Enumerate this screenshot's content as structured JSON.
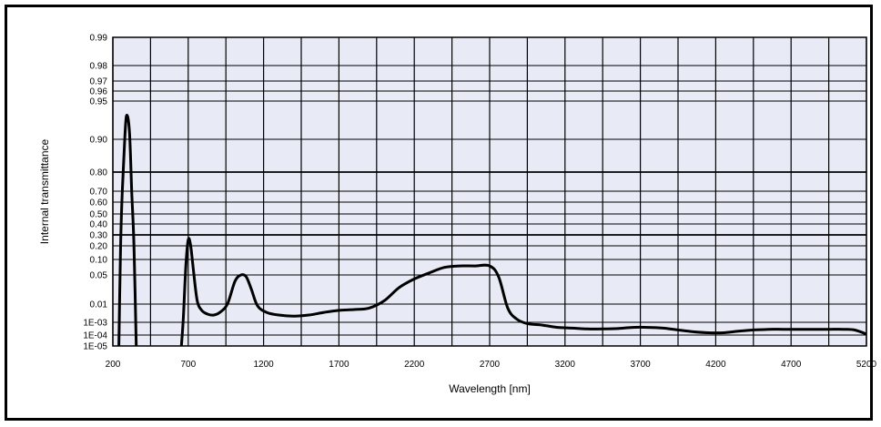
{
  "chart_data": {
    "type": "line",
    "xlabel": "Wavelength [nm]",
    "ylabel": "Internal transmittance",
    "xlim": [
      200,
      5200
    ],
    "x_ticks": [
      200,
      700,
      1200,
      1700,
      2200,
      2700,
      3200,
      3700,
      4200,
      4700,
      5200
    ],
    "x_tick_labels": [
      "200",
      "700",
      "1200",
      "1700",
      "2200",
      "2700",
      "3200",
      "3700",
      "4200",
      "4700",
      "5200"
    ],
    "y_ticks": [
      {
        "label": "0.99",
        "value": 0.99
      },
      {
        "label": "0.98",
        "value": 0.98
      },
      {
        "label": "0.97",
        "value": 0.97
      },
      {
        "label": "0.96",
        "value": 0.96
      },
      {
        "label": "0.95",
        "value": 0.95
      },
      {
        "label": "0.90",
        "value": 0.9
      },
      {
        "label": "0.80",
        "value": 0.8
      },
      {
        "label": "0.70",
        "value": 0.7
      },
      {
        "label": "0.60",
        "value": 0.6
      },
      {
        "label": "0.50",
        "value": 0.5
      },
      {
        "label": "0.40",
        "value": 0.4
      },
      {
        "label": "0.30",
        "value": 0.3
      },
      {
        "label": "0.20",
        "value": 0.2
      },
      {
        "label": "0.10",
        "value": 0.1
      },
      {
        "label": "0.05",
        "value": 0.05
      },
      {
        "label": "0.01",
        "value": 0.01
      },
      {
        "label": "1E-03",
        "value": 0.001
      },
      {
        "label": "1E-04",
        "value": 0.0001
      },
      {
        "label": "1E-05",
        "value": 1e-05
      }
    ],
    "grid": true,
    "colors": {
      "plot_background": "#e8eaf6",
      "grid": "#000000",
      "line": "#000000"
    },
    "series": [
      {
        "segments": [
          [
            [
              240,
              1e-05
            ],
            [
              250,
              0.12
            ],
            [
              260,
              0.6
            ],
            [
              275,
              0.86
            ],
            [
              290,
              0.93
            ],
            [
              310,
              0.91
            ],
            [
              325,
              0.7
            ],
            [
              340,
              0.2
            ],
            [
              355,
              1e-05
            ]
          ],
          [
            [
              655,
              1e-05
            ],
            [
              668,
              0.002
            ],
            [
              685,
              0.08
            ],
            [
              700,
              0.25
            ],
            [
              715,
              0.21
            ],
            [
              735,
              0.06
            ],
            [
              760,
              0.012
            ],
            [
              790,
              0.0045
            ],
            [
              830,
              0.0028
            ],
            [
              870,
              0.0025
            ],
            [
              910,
              0.0035
            ],
            [
              960,
              0.01
            ],
            [
              1010,
              0.035
            ],
            [
              1050,
              0.05
            ],
            [
              1085,
              0.045
            ],
            [
              1120,
              0.022
            ],
            [
              1160,
              0.008
            ],
            [
              1220,
              0.0035
            ],
            [
              1300,
              0.0025
            ],
            [
              1400,
              0.0022
            ],
            [
              1500,
              0.0025
            ],
            [
              1600,
              0.0035
            ],
            [
              1700,
              0.0045
            ],
            [
              1800,
              0.005
            ],
            [
              1900,
              0.006
            ],
            [
              2000,
              0.012
            ],
            [
              2100,
              0.025
            ],
            [
              2200,
              0.04
            ],
            [
              2300,
              0.055
            ],
            [
              2400,
              0.07
            ],
            [
              2500,
              0.075
            ],
            [
              2600,
              0.075
            ],
            [
              2700,
              0.075
            ],
            [
              2760,
              0.045
            ],
            [
              2820,
              0.006
            ],
            [
              2880,
              0.0015
            ],
            [
              2950,
              0.0008
            ],
            [
              3050,
              0.0006
            ],
            [
              3150,
              0.0004
            ],
            [
              3250,
              0.00035
            ],
            [
              3350,
              0.0003
            ],
            [
              3450,
              0.0003
            ],
            [
              3550,
              0.00032
            ],
            [
              3650,
              0.0004
            ],
            [
              3750,
              0.0004
            ],
            [
              3850,
              0.00035
            ],
            [
              3950,
              0.00025
            ],
            [
              4050,
              0.00018
            ],
            [
              4150,
              0.00015
            ],
            [
              4250,
              0.00015
            ],
            [
              4350,
              0.0002
            ],
            [
              4450,
              0.00025
            ],
            [
              4550,
              0.00028
            ],
            [
              4650,
              0.00028
            ],
            [
              4750,
              0.00028
            ],
            [
              4850,
              0.00028
            ],
            [
              4950,
              0.00028
            ],
            [
              5050,
              0.00028
            ],
            [
              5120,
              0.00025
            ],
            [
              5200,
              0.00012
            ]
          ]
        ]
      }
    ]
  }
}
